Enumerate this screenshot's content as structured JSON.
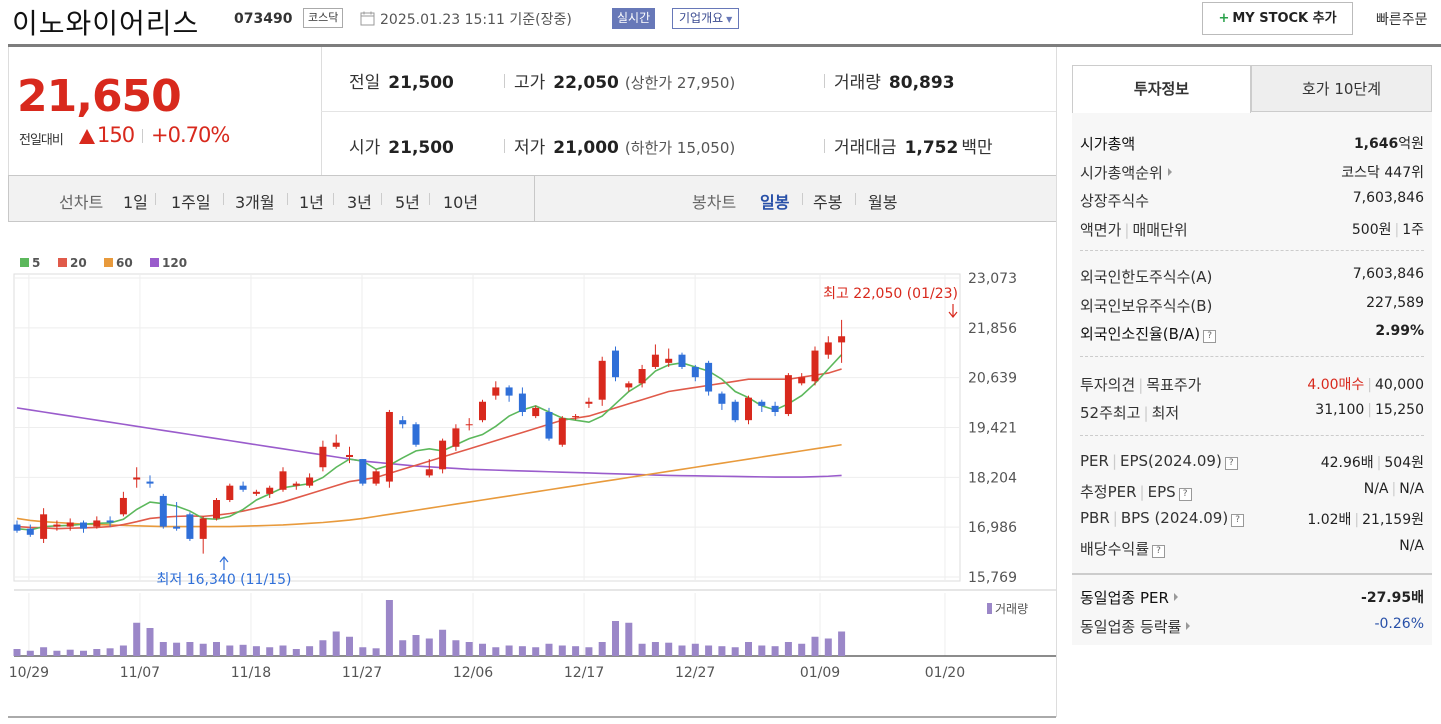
{
  "header": {
    "stock_name": "이노와이어리스",
    "stock_code": "073490",
    "market": "코스닥",
    "date": "2025.01.23 15:11 기준(장중)",
    "realtime_label": "실시간",
    "corp_overview_label": "기업개요",
    "mystock_label": "MY STOCK 추가",
    "quick_order_label": "빠른주문"
  },
  "price": {
    "current": "21,650",
    "change_label": "전일대비",
    "change_value": "150",
    "change_pct": "+0.70%",
    "stats": {
      "prev_close_label": "전일",
      "prev_close": "21,500",
      "high_label": "고가",
      "high": "22,050",
      "upper_limit": "(상한가 27,950)",
      "volume_label": "거래량",
      "volume": "80,893",
      "open_label": "시가",
      "open": "21,500",
      "low_label": "저가",
      "low": "21,000",
      "lower_limit": "(하한가 15,050)",
      "amount_label": "거래대금",
      "amount": "1,752",
      "amount_unit": "백만"
    }
  },
  "period_bar": {
    "line_label": "선차트",
    "line_periods": [
      "1일",
      "1주일",
      "3개월",
      "1년",
      "3년",
      "5년",
      "10년"
    ],
    "candle_label": "봉차트",
    "candle_periods": [
      "일봉",
      "주봉",
      "월봉"
    ],
    "active_candle": "일봉"
  },
  "chart_data": {
    "type": "candlestick",
    "legend": [
      {
        "name": "5",
        "color": "#5cb85c"
      },
      {
        "name": "20",
        "color": "#e05a4a"
      },
      {
        "name": "60",
        "color": "#e89a3c"
      },
      {
        "name": "120",
        "color": "#9a5ccc"
      }
    ],
    "y_ticks": [
      "23,073",
      "21,856",
      "20,639",
      "19,421",
      "18,204",
      "16,986",
      "15,769"
    ],
    "y_range": [
      15769,
      23073
    ],
    "x_ticks": [
      "10/29",
      "11/07",
      "11/18",
      "11/27",
      "12/06",
      "12/17",
      "12/27",
      "01/09",
      "01/20"
    ],
    "high_annotation": "최고 22,050 (01/23)",
    "low_annotation": "최저 16,340 (11/15)",
    "volume_label": "거래량",
    "up_color": "#d8291d",
    "down_color": "#2f6fd8",
    "candles": [
      [
        17050,
        16900,
        17150,
        16850
      ],
      [
        16950,
        16800,
        17050,
        16750
      ],
      [
        16700,
        17300,
        17450,
        16600
      ],
      [
        17000,
        17050,
        17150,
        16900
      ],
      [
        17000,
        17100,
        17200,
        16900
      ],
      [
        17100,
        16950,
        17150,
        16850
      ],
      [
        17000,
        17150,
        17250,
        16950
      ],
      [
        17150,
        17100,
        17250,
        17000
      ],
      [
        17300,
        17700,
        17850,
        17250
      ],
      [
        18150,
        18200,
        18450,
        17950
      ],
      [
        18100,
        18050,
        18250,
        17950
      ],
      [
        17750,
        17000,
        17800,
        16950
      ],
      [
        17000,
        16950,
        17600,
        16900
      ],
      [
        17300,
        16700,
        17350,
        16650
      ],
      [
        16700,
        17200,
        17250,
        16340
      ],
      [
        17200,
        17650,
        17700,
        17150
      ],
      [
        17650,
        18000,
        18050,
        17600
      ],
      [
        18000,
        17900,
        18100,
        17850
      ],
      [
        17800,
        17850,
        17900,
        17750
      ],
      [
        17800,
        17950,
        18000,
        17700
      ],
      [
        17900,
        18350,
        18450,
        17850
      ],
      [
        18000,
        18050,
        18100,
        17900
      ],
      [
        18000,
        18200,
        18300,
        17950
      ],
      [
        18450,
        18950,
        19100,
        18350
      ],
      [
        18950,
        19050,
        19250,
        18900
      ],
      [
        18700,
        18750,
        18950,
        18550
      ],
      [
        18650,
        18050,
        18650,
        18000
      ],
      [
        18050,
        18350,
        18400,
        18000
      ],
      [
        18100,
        19800,
        19850,
        17950
      ],
      [
        19600,
        19500,
        19700,
        19400
      ],
      [
        19500,
        19000,
        19550,
        18950
      ],
      [
        18250,
        18400,
        18650,
        18200
      ],
      [
        18400,
        19100,
        19150,
        18300
      ],
      [
        18950,
        19400,
        19500,
        18850
      ],
      [
        19500,
        19500,
        19650,
        19350
      ],
      [
        19600,
        20050,
        20100,
        19550
      ],
      [
        20200,
        20400,
        20550,
        20100
      ],
      [
        20400,
        20200,
        20450,
        20050
      ],
      [
        20250,
        19800,
        20400,
        19700
      ],
      [
        19700,
        19900,
        19950,
        19650
      ],
      [
        19800,
        19150,
        19900,
        19100
      ],
      [
        19000,
        19650,
        19700,
        18950
      ],
      [
        19700,
        19700,
        19750,
        19600
      ],
      [
        20000,
        20050,
        20150,
        19900
      ],
      [
        20100,
        21050,
        21150,
        19950
      ],
      [
        21300,
        20650,
        21400,
        20550
      ],
      [
        20400,
        20500,
        20550,
        20300
      ],
      [
        20500,
        20850,
        20950,
        20400
      ],
      [
        20900,
        21200,
        21450,
        20850
      ],
      [
        21000,
        21100,
        21350,
        20900
      ],
      [
        21200,
        20900,
        21250,
        20850
      ],
      [
        20900,
        20650,
        20950,
        20550
      ],
      [
        21000,
        20300,
        21050,
        20200
      ],
      [
        20250,
        20000,
        20300,
        19850
      ],
      [
        20050,
        19600,
        20100,
        19550
      ],
      [
        19600,
        20150,
        20200,
        19500
      ],
      [
        20050,
        19950,
        20100,
        19800
      ],
      [
        19950,
        19800,
        20050,
        19700
      ],
      [
        19750,
        20700,
        20750,
        19700
      ],
      [
        20500,
        20650,
        20750,
        20450
      ],
      [
        20550,
        21300,
        21400,
        20450
      ],
      [
        21200,
        21500,
        21650,
        21100
      ],
      [
        21500,
        21650,
        22050,
        21000
      ]
    ],
    "ma5": [
      16950,
      16920,
      17000,
      17020,
      17030,
      17060,
      17080,
      17090,
      17180,
      17420,
      17600,
      17560,
      17500,
      17380,
      17200,
      17180,
      17250,
      17420,
      17650,
      17800,
      17950,
      18000,
      18050,
      18200,
      18450,
      18650,
      18600,
      18400,
      18500,
      18680,
      18850,
      18900,
      18850,
      19000,
      19150,
      19250,
      19450,
      19700,
      19850,
      19950,
      19800,
      19650,
      19600,
      19550,
      19700,
      20000,
      20300,
      20500,
      20800,
      20950,
      21000,
      20900,
      20800,
      20600,
      20300,
      20150,
      19950,
      19850,
      20000,
      20200,
      20500,
      20850,
      21200
    ],
    "ma20": [
      17000,
      16980,
      16970,
      16950,
      16960,
      16970,
      16980,
      17000,
      17050,
      17120,
      17200,
      17230,
      17250,
      17260,
      17250,
      17280,
      17320,
      17380,
      17450,
      17520,
      17600,
      17700,
      17800,
      17900,
      18000,
      18100,
      18150,
      18200,
      18300,
      18400,
      18500,
      18600,
      18700,
      18800,
      18900,
      19000,
      19100,
      19200,
      19300,
      19400,
      19500,
      19600,
      19650,
      19700,
      19800,
      19900,
      20000,
      20100,
      20200,
      20300,
      20350,
      20400,
      20450,
      20500,
      20550,
      20600,
      20600,
      20600,
      20600,
      20650,
      20700,
      20750,
      20850
    ],
    "ma60": [
      17200,
      17150,
      17120,
      17100,
      17080,
      17060,
      17050,
      17040,
      17030,
      17020,
      17010,
      17000,
      17000,
      17000,
      17000,
      17000,
      17000,
      17010,
      17020,
      17030,
      17040,
      17060,
      17080,
      17100,
      17130,
      17160,
      17200,
      17250,
      17300,
      17350,
      17400,
      17450,
      17500,
      17550,
      17600,
      17650,
      17700,
      17750,
      17800,
      17850,
      17900,
      17950,
      18000,
      18050,
      18100,
      18150,
      18200,
      18250,
      18300,
      18350,
      18400,
      18450,
      18500,
      18550,
      18600,
      18650,
      18700,
      18750,
      18800,
      18850,
      18900,
      18950,
      19000
    ],
    "ma120": [
      19900,
      19850,
      19800,
      19750,
      19700,
      19650,
      19600,
      19550,
      19500,
      19450,
      19400,
      19350,
      19300,
      19250,
      19200,
      19150,
      19100,
      19050,
      19000,
      18950,
      18900,
      18850,
      18800,
      18750,
      18700,
      18650,
      18600,
      18570,
      18540,
      18510,
      18480,
      18460,
      18440,
      18420,
      18400,
      18390,
      18380,
      18370,
      18360,
      18350,
      18340,
      18330,
      18320,
      18310,
      18300,
      18290,
      18280,
      18270,
      18260,
      18250,
      18245,
      18240,
      18235,
      18230,
      18225,
      18220,
      18215,
      18210,
      18210,
      18210,
      18220,
      18230,
      18250
    ],
    "volumes": [
      20,
      15,
      25,
      15,
      18,
      15,
      20,
      22,
      30,
      95,
      80,
      40,
      38,
      40,
      35,
      40,
      30,
      32,
      28,
      25,
      30,
      20,
      28,
      45,
      70,
      55,
      25,
      22,
      160,
      45,
      60,
      50,
      75,
      45,
      40,
      35,
      25,
      30,
      28,
      25,
      35,
      30,
      28,
      25,
      40,
      100,
      95,
      35,
      40,
      38,
      30,
      35,
      30,
      28,
      25,
      40,
      30,
      28,
      40,
      35,
      55,
      50,
      70
    ]
  },
  "right_panel": {
    "tab_invest": "투자정보",
    "tab_hoga": "호가 10단계",
    "rows1": [
      {
        "label": "시가총액",
        "value": "1,646",
        "unit": "억원"
      },
      {
        "label": "시가총액순위",
        "value": "코스닥 447위"
      },
      {
        "label": "상장주식수",
        "value": "7,603,846"
      },
      {
        "label": "액면가",
        "label2": "매매단위",
        "value": "500원",
        "value2": "1주"
      }
    ],
    "rows2": [
      {
        "label": "외국인한도주식수(A)",
        "value": "7,603,846"
      },
      {
        "label": "외국인보유주식수(B)",
        "value": "227,589"
      },
      {
        "label": "외국인소진율(B/A)",
        "value": "2.99%"
      }
    ],
    "rows3": [
      {
        "label": "투자의견",
        "label2": "목표주가",
        "value": "4.00매수",
        "value2": "40,000"
      },
      {
        "label": "52주최고",
        "label2": "최저",
        "value": "31,100",
        "value2": "15,250"
      }
    ],
    "rows4": [
      {
        "label": "PER",
        "label2": "EPS(2024.09)",
        "value": "42.96배",
        "value2": "504원"
      },
      {
        "label": "추정PER",
        "label2": "EPS",
        "value": "N/A",
        "value2": "N/A"
      },
      {
        "label": "PBR",
        "label2": "BPS (2024.09)",
        "value": "1.02배",
        "value2": "21,159원"
      },
      {
        "label": "배당수익률",
        "value": "N/A"
      }
    ],
    "rows5": [
      {
        "label": "동일업종 PER",
        "value": "-27.95배"
      },
      {
        "label": "동일업종 등락률",
        "value": "-0.26%"
      }
    ]
  }
}
